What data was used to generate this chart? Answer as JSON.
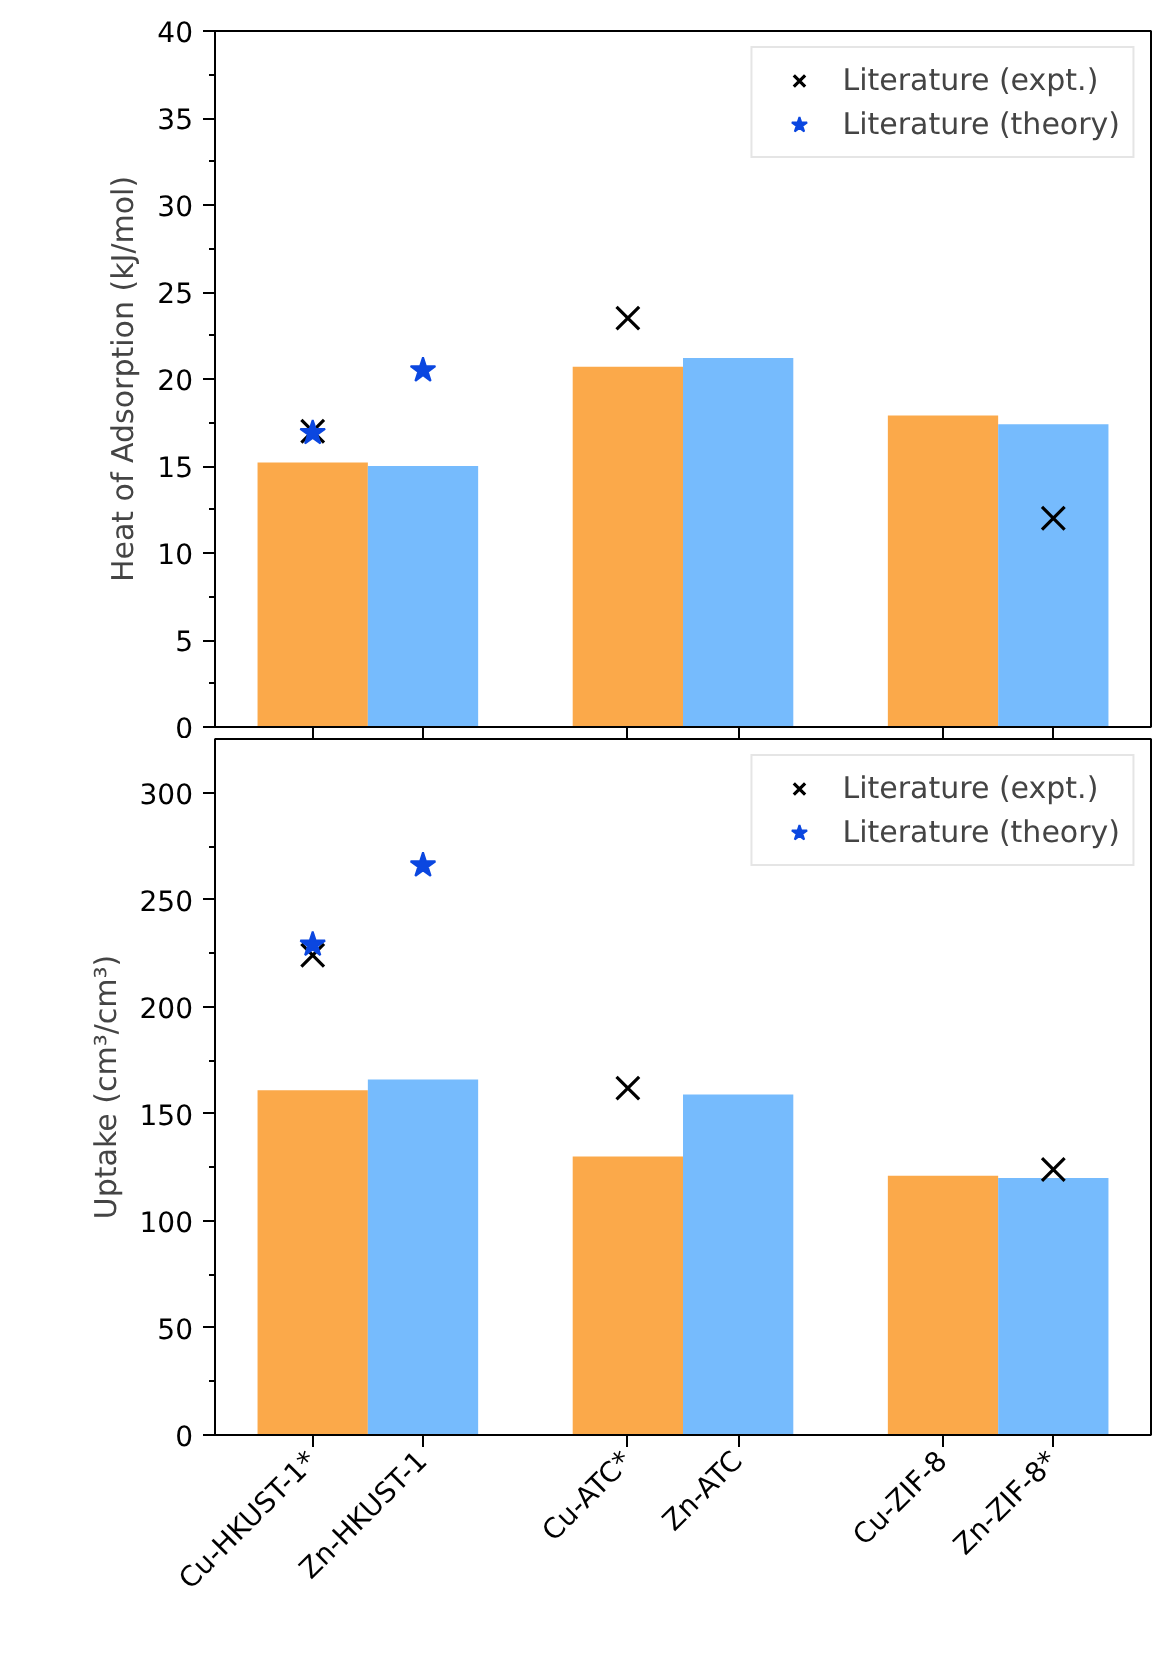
{
  "chart_data": [
    {
      "type": "bar",
      "ylabel": "Heat of Adsorption (kJ/mol)",
      "ylim": [
        0,
        40
      ],
      "yticks": [
        0,
        5,
        10,
        15,
        20,
        25,
        30,
        35,
        40
      ],
      "categories": [
        null,
        null,
        null,
        null,
        null,
        null
      ],
      "legend": "top right",
      "series": [
        {
          "color": "#fba94a",
          "values": [
            15.2,
            null,
            20.7,
            null,
            17.9,
            null
          ]
        },
        {
          "color": "#76bbfd",
          "values": [
            null,
            15.0,
            null,
            21.2,
            null,
            17.4
          ]
        },
        {
          "type": "scatter",
          "name": "Literature (expt.)",
          "color": "#000000",
          "marker": "cross",
          "values": [
            17.0,
            null,
            23.5,
            null,
            null,
            12.0
          ]
        },
        {
          "type": "scatter",
          "name": "Literature (theory)",
          "color": "#0b47e0",
          "marker": "star",
          "values": [
            16.9,
            20.5,
            null,
            null,
            null,
            null
          ]
        }
      ]
    },
    {
      "type": "bar",
      "ylabel": "Uptake (cm³/cm³)",
      "ylim": [
        0,
        325
      ],
      "yticks": [
        0,
        50,
        100,
        150,
        200,
        250,
        300
      ],
      "categories": [
        "Cu-HKUST-1*",
        "Zn-HKUST-1",
        "Cu-ATC*",
        "Zn-ATC",
        "Cu-ZIF-8",
        "Zn-ZIF-8*"
      ],
      "legend": "top right",
      "series": [
        {
          "color": "#fba94a",
          "values": [
            161,
            null,
            130,
            null,
            121,
            null
          ]
        },
        {
          "color": "#76bbfd",
          "values": [
            null,
            166,
            null,
            159,
            null,
            120
          ]
        },
        {
          "type": "scatter",
          "name": "Literature (expt.)",
          "color": "#000000",
          "marker": "cross",
          "values": [
            224,
            null,
            162,
            null,
            null,
            124
          ]
        },
        {
          "type": "scatter",
          "name": "Literature (theory)",
          "color": "#0b47e0",
          "marker": "star",
          "values": [
            229,
            266,
            null,
            null,
            null,
            null
          ]
        }
      ]
    }
  ]
}
